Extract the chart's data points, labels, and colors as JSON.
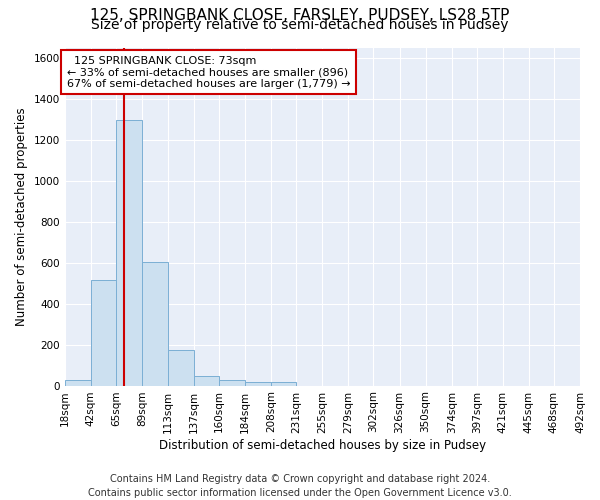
{
  "title_line1": "125, SPRINGBANK CLOSE, FARSLEY, PUDSEY, LS28 5TP",
  "title_line2": "Size of property relative to semi-detached houses in Pudsey",
  "xlabel": "Distribution of semi-detached houses by size in Pudsey",
  "ylabel": "Number of semi-detached properties",
  "property_size": 73,
  "property_label": "125 SPRINGBANK CLOSE: 73sqm",
  "pct_smaller": 33,
  "pct_larger": 67,
  "count_smaller": 896,
  "count_larger": 1779,
  "bar_color": "#cce0f0",
  "bar_edge_color": "#7bafd4",
  "marker_line_color": "#cc0000",
  "annotation_box_edge": "#cc0000",
  "annotation_box_face": "#ffffff",
  "ylim": [
    0,
    1650
  ],
  "yticks": [
    0,
    200,
    400,
    600,
    800,
    1000,
    1200,
    1400,
    1600
  ],
  "bin_edges": [
    18,
    42,
    65,
    89,
    113,
    137,
    160,
    184,
    208,
    231,
    255,
    279,
    302,
    326,
    350,
    374,
    397,
    421,
    445,
    468,
    492
  ],
  "counts": [
    25,
    515,
    1295,
    605,
    175,
    45,
    25,
    15,
    15,
    0,
    0,
    0,
    0,
    0,
    0,
    0,
    0,
    0,
    0,
    0
  ],
  "footer_line1": "Contains HM Land Registry data © Crown copyright and database right 2024.",
  "footer_line2": "Contains public sector information licensed under the Open Government Licence v3.0.",
  "title_fontsize": 11,
  "subtitle_fontsize": 10,
  "axis_label_fontsize": 8.5,
  "tick_fontsize": 7.5,
  "footer_fontsize": 7,
  "annotation_fontsize": 8
}
